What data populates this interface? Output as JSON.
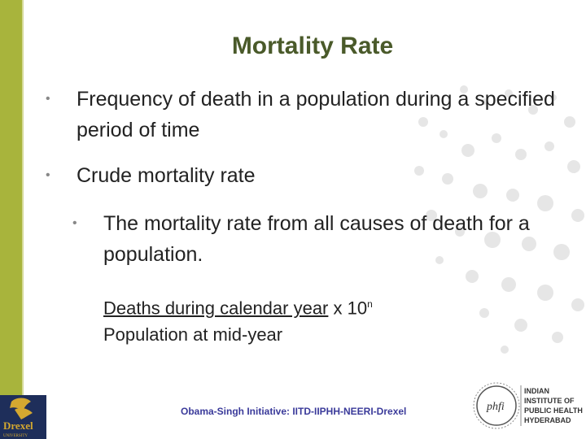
{
  "slide": {
    "title": "Mortality Rate",
    "bullets": [
      {
        "text": "Frequency of death in a population during a specified period of time"
      },
      {
        "text": "Crude mortality rate"
      }
    ],
    "sub_bullet": "The mortality rate from all causes of death for a population.",
    "formula": {
      "numerator": "Deaths during calendar year",
      "multiplier": "x 10",
      "exponent": "n",
      "denominator": "Population at mid-year"
    },
    "footer": "Obama-Singh Initiative: IITD-IIPHH-NEERI-Drexel",
    "logos": {
      "left": {
        "name": "Drexel",
        "lines": [
          "Drexel",
          "UNIVERSITY"
        ]
      },
      "right": {
        "emblem": "phfi",
        "lines": [
          "INDIAN",
          "INSTITUTE OF",
          "PUBLIC HEALTH",
          "HYDERABAD"
        ]
      }
    },
    "colors": {
      "accent_bar": "#a8b43c",
      "title": "#4a5a2a",
      "footer": "#3a3a9a",
      "drexel_navy": "#1e2e5a"
    }
  }
}
